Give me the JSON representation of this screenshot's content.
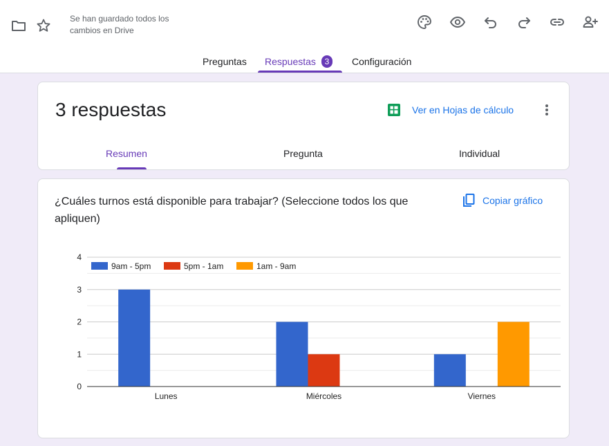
{
  "header": {
    "save_status": "Se han guardado todos los cambios en Drive",
    "icons": [
      "folder-icon",
      "star-icon",
      "palette-icon",
      "eye-icon",
      "undo-icon",
      "redo-icon",
      "link-icon",
      "add-person-icon"
    ]
  },
  "tabs": {
    "questions": "Preguntas",
    "responses": "Respuestas",
    "responses_count": "3",
    "settings": "Configuración"
  },
  "summary_card": {
    "title": "3 respuestas",
    "sheets_link": "Ver en Hojas de cálculo",
    "subtabs": [
      "Resumen",
      "Pregunta",
      "Individual"
    ]
  },
  "question_card": {
    "question": "¿Cuáles turnos está disponible para trabajar? (Seleccione todos los que apliquen)",
    "copy_chart": "Copiar gráfico"
  },
  "colors": {
    "accent": "#673ab7",
    "link": "#1a73e8",
    "series": [
      "#3366cc",
      "#dc3912",
      "#ff9900"
    ]
  },
  "chart_data": {
    "type": "bar",
    "categories": [
      "Lunes",
      "Miércoles",
      "Viernes"
    ],
    "series": [
      {
        "name": "9am - 5pm",
        "values": [
          3,
          2,
          1
        ]
      },
      {
        "name": "5pm - 1am",
        "values": [
          0,
          1,
          0
        ]
      },
      {
        "name": "1am - 9am",
        "values": [
          0,
          0,
          2
        ]
      }
    ],
    "ylim": [
      0,
      4
    ],
    "yticks": [
      0,
      1,
      2,
      3,
      4
    ],
    "grid": true,
    "legend": "top-left"
  }
}
